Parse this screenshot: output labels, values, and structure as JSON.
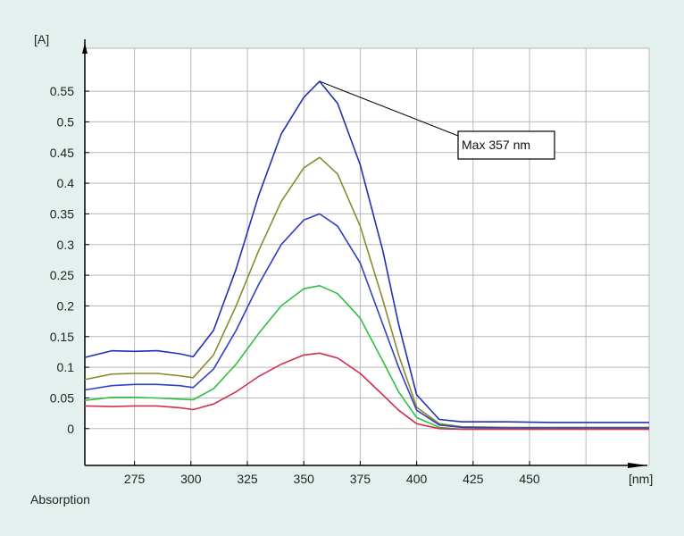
{
  "chart_data": {
    "type": "line",
    "y_unit_label": "[A]",
    "x_unit_label": "[nm]",
    "caption": "Absorption",
    "xlim": [
      253,
      503
    ],
    "ylim": [
      -0.06,
      0.62
    ],
    "x_ticks": [
      275,
      300,
      325,
      350,
      375,
      400,
      425,
      450
    ],
    "y_ticks": [
      0,
      0.05,
      0.1,
      0.15,
      0.2,
      0.25,
      0.3,
      0.35,
      0.4,
      0.45,
      0.5,
      0.55
    ],
    "y_tick_labels": [
      "0",
      "0.05",
      "0.1",
      "0.15",
      "0.2",
      "0.25",
      "0.3",
      "0.35",
      "0.4",
      "0.45",
      "0.5",
      "0.55"
    ],
    "grid": true,
    "x": [
      253,
      265,
      275,
      285,
      295,
      301,
      310,
      320,
      330,
      340,
      350,
      357,
      365,
      375,
      385,
      392,
      400,
      410,
      420,
      440,
      460,
      480,
      503
    ],
    "series": [
      {
        "color": "#2030b0",
        "values": [
          0.116,
          0.127,
          0.126,
          0.127,
          0.122,
          0.117,
          0.16,
          0.26,
          0.38,
          0.48,
          0.54,
          0.566,
          0.53,
          0.43,
          0.29,
          0.17,
          0.055,
          0.015,
          0.011,
          0.011,
          0.01,
          0.01,
          0.01
        ]
      },
      {
        "color": "#8a8a30",
        "values": [
          0.08,
          0.089,
          0.09,
          0.09,
          0.086,
          0.083,
          0.12,
          0.2,
          0.29,
          0.37,
          0.425,
          0.442,
          0.415,
          0.33,
          0.21,
          0.12,
          0.035,
          0.008,
          0.003,
          0.002,
          0.002,
          0.002,
          0.002
        ]
      },
      {
        "color": "#3040c0",
        "values": [
          0.063,
          0.07,
          0.072,
          0.072,
          0.07,
          0.067,
          0.097,
          0.16,
          0.235,
          0.3,
          0.34,
          0.35,
          0.33,
          0.27,
          0.17,
          0.1,
          0.03,
          0.006,
          0.002,
          0.001,
          0.001,
          0.001,
          0.001
        ]
      },
      {
        "color": "#30c040",
        "values": [
          0.046,
          0.051,
          0.051,
          0.05,
          0.048,
          0.047,
          0.065,
          0.105,
          0.155,
          0.2,
          0.228,
          0.233,
          0.22,
          0.18,
          0.11,
          0.06,
          0.018,
          0.002,
          -0.001,
          -0.001,
          -0.001,
          -0.001,
          -0.001
        ]
      },
      {
        "color": "#d03050",
        "values": [
          0.037,
          0.036,
          0.037,
          0.037,
          0.034,
          0.031,
          0.04,
          0.06,
          0.085,
          0.105,
          0.12,
          0.123,
          0.115,
          0.09,
          0.055,
          0.03,
          0.008,
          0.0,
          -0.001,
          -0.001,
          -0.001,
          -0.001,
          -0.001
        ]
      }
    ],
    "annotation": {
      "text": "Max 357 nm",
      "x": 357,
      "y": 0.566
    }
  }
}
